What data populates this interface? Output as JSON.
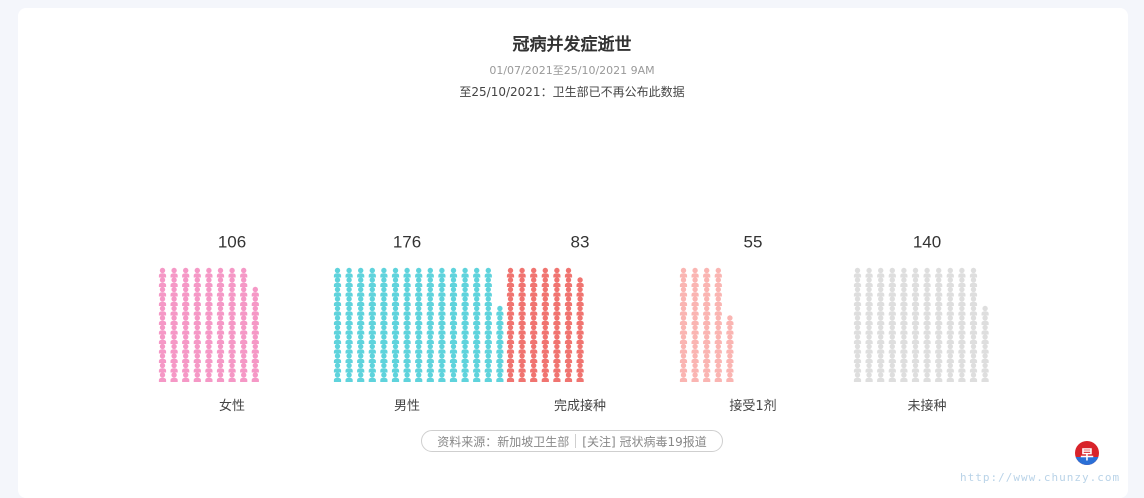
{
  "chart_data": {
    "type": "bar",
    "title": "冠病并发症逝世",
    "subtitle": "01/07/2021至25/10/2021 9AM",
    "note": "至25/10/2021：卫生部已不再公布此数据",
    "categories": [
      "女性",
      "男性",
      "完成接种",
      "接受1剂",
      "未接种"
    ],
    "values": [
      106,
      176,
      83,
      55,
      140
    ],
    "colors": [
      "#f598c6",
      "#5fd3dc",
      "#f07470",
      "#fab5b2",
      "#dedede"
    ],
    "icon": "person-icon",
    "legend": "none",
    "grid": false
  },
  "source": {
    "label": "资料来源：新加坡卫生部",
    "link": "[关注] 冠状病毒19报道"
  },
  "logo": {
    "text": "早"
  },
  "watermark": "http://www.chunzy.com"
}
